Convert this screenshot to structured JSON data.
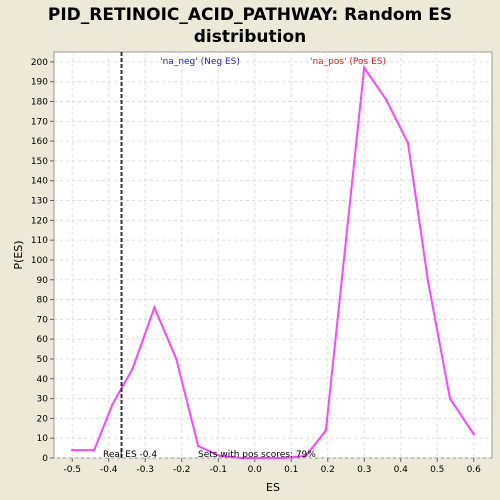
{
  "chart_data": {
    "type": "line",
    "title_line1": "PID_RETINOIC_ACID_PATHWAY: Random ES",
    "title_line2": "distribution",
    "xlabel": "ES",
    "ylabel": "P(ES)",
    "xlim": [
      -0.55,
      0.65
    ],
    "ylim": [
      0,
      205
    ],
    "x_ticks": [
      -0.5,
      -0.4,
      -0.3,
      -0.2,
      -0.1,
      0.0,
      0.1,
      0.2,
      0.3,
      0.4,
      0.5,
      0.6
    ],
    "x_tick_labels": [
      "-0.5",
      "-0.4",
      "-0.3",
      "-0.2",
      "-0.1",
      "0.0",
      "0.1",
      "0.2",
      "0.3",
      "0.4",
      "0.5",
      "0.6"
    ],
    "y_ticks": [
      0,
      10,
      20,
      30,
      40,
      50,
      60,
      70,
      80,
      90,
      100,
      110,
      120,
      130,
      140,
      150,
      160,
      170,
      180,
      190,
      200
    ],
    "grid": true,
    "series": [
      {
        "color": "#ff44ff",
        "x": [
          -0.5,
          -0.44,
          -0.39,
          -0.335,
          -0.275,
          -0.215,
          -0.155,
          -0.095,
          -0.035,
          0.02,
          0.08,
          0.14,
          0.195,
          0.3,
          0.36,
          0.42,
          0.475,
          0.535,
          0.6
        ],
        "y": [
          4,
          4,
          27,
          45,
          76,
          50,
          6,
          1,
          0,
          0,
          0,
          1,
          14,
          197,
          181,
          159,
          89,
          30,
          12
        ]
      }
    ],
    "real_es": -0.365,
    "annotations": {
      "neg_label": "'na_neg' (Neg ES)",
      "pos_label": "'na_pos' (Pos ES)",
      "real_es_label": "Real ES -0.4",
      "pos_scores_label": "Sets with pos scores: 79%"
    },
    "colors": {
      "neg_label": "#2222cc",
      "pos_label": "#cc2222",
      "plot_bg": "#ffffff",
      "page_bg": "#ece9d8"
    }
  }
}
